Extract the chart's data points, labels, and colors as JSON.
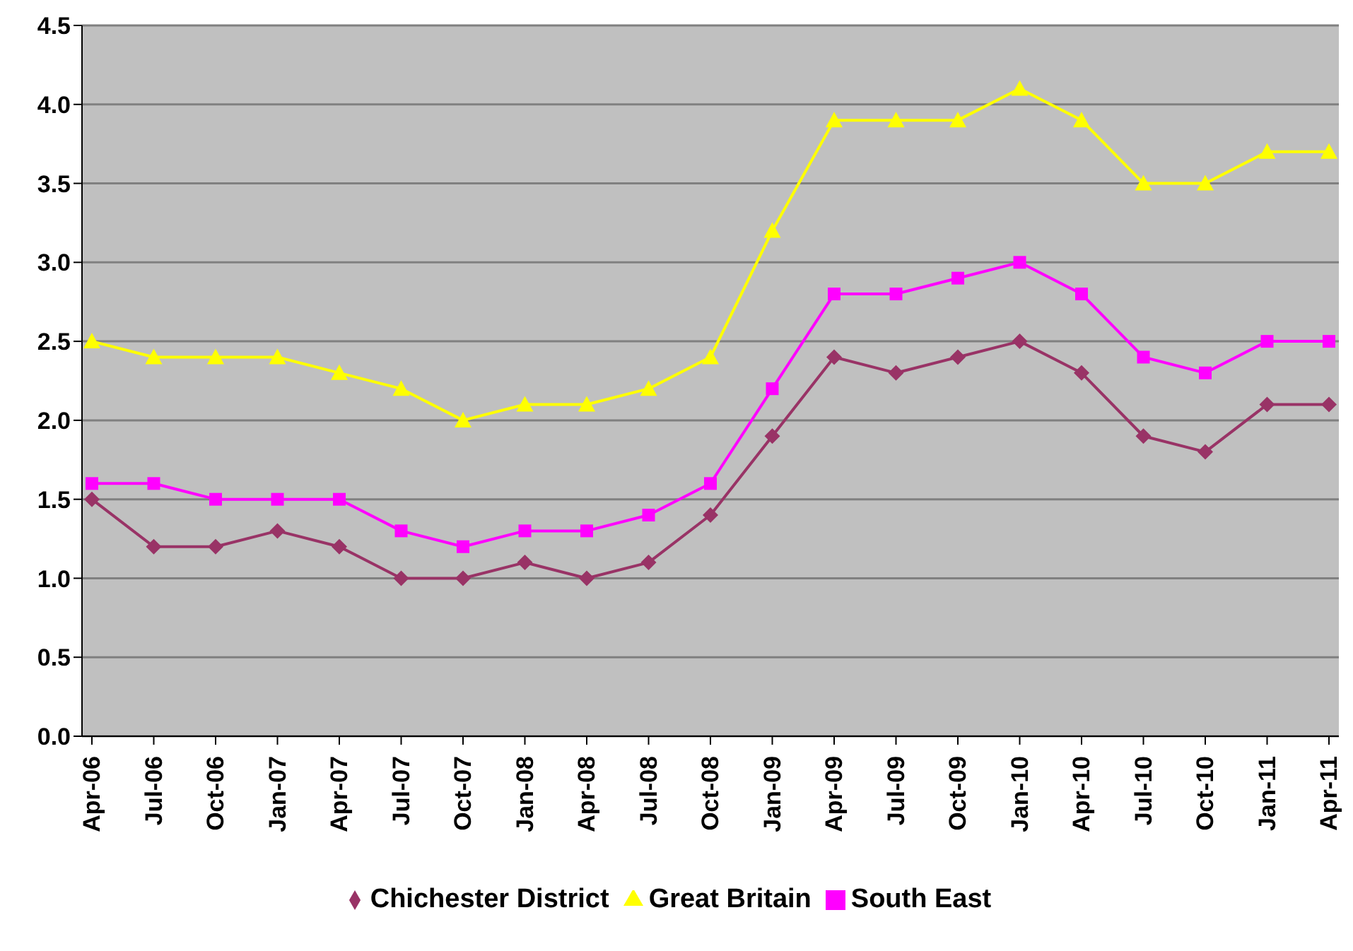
{
  "chart_data": {
    "type": "line",
    "categories": [
      "Apr-06",
      "Jul-06",
      "Oct-06",
      "Jan-07",
      "Apr-07",
      "Jul-07",
      "Oct-07",
      "Jan-08",
      "Apr-08",
      "Jul-08",
      "Oct-08",
      "Jan-09",
      "Apr-09",
      "Jul-09",
      "Oct-09",
      "Jan-10",
      "Apr-10",
      "Jul-10",
      "Oct-10",
      "Jan-11",
      "Apr-11"
    ],
    "series": [
      {
        "name": "Chichester District",
        "color": "#993366",
        "marker": "diamond",
        "values": [
          1.5,
          1.2,
          1.2,
          1.3,
          1.2,
          1.0,
          1.0,
          1.1,
          1.0,
          1.1,
          1.4,
          1.9,
          2.4,
          2.3,
          2.4,
          2.5,
          2.3,
          1.9,
          1.8,
          2.1,
          2.1
        ]
      },
      {
        "name": "South East",
        "color": "#ff00ff",
        "marker": "square",
        "values": [
          1.6,
          1.6,
          1.5,
          1.5,
          1.5,
          1.3,
          1.2,
          1.3,
          1.3,
          1.4,
          1.6,
          2.2,
          2.8,
          2.8,
          2.9,
          3.0,
          2.8,
          2.4,
          2.3,
          2.5,
          2.5
        ]
      },
      {
        "name": "Great Britain",
        "color": "#ffff00",
        "marker": "triangle",
        "values": [
          2.5,
          2.4,
          2.4,
          2.4,
          2.3,
          2.2,
          2.0,
          2.1,
          2.1,
          2.2,
          2.4,
          3.2,
          3.9,
          3.9,
          3.9,
          4.1,
          3.9,
          3.5,
          3.5,
          3.7,
          3.7
        ]
      }
    ],
    "ylim": [
      0,
      4.5
    ],
    "yticks": [
      {
        "value": 0,
        "label": "0.0"
      },
      {
        "value": 0.5,
        "label": "0.5"
      },
      {
        "value": 1,
        "label": "1.0"
      },
      {
        "value": 1.5,
        "label": "1.5"
      },
      {
        "value": 2,
        "label": "2.0"
      },
      {
        "value": 2.5,
        "label": "2.5"
      },
      {
        "value": 3,
        "label": "3.0"
      },
      {
        "value": 3.5,
        "label": "3.5"
      },
      {
        "value": 4,
        "label": "4.0"
      },
      {
        "value": 4.5,
        "label": "4.5"
      }
    ],
    "grid": "y",
    "legend": "bottom",
    "line_style": "solid"
  }
}
